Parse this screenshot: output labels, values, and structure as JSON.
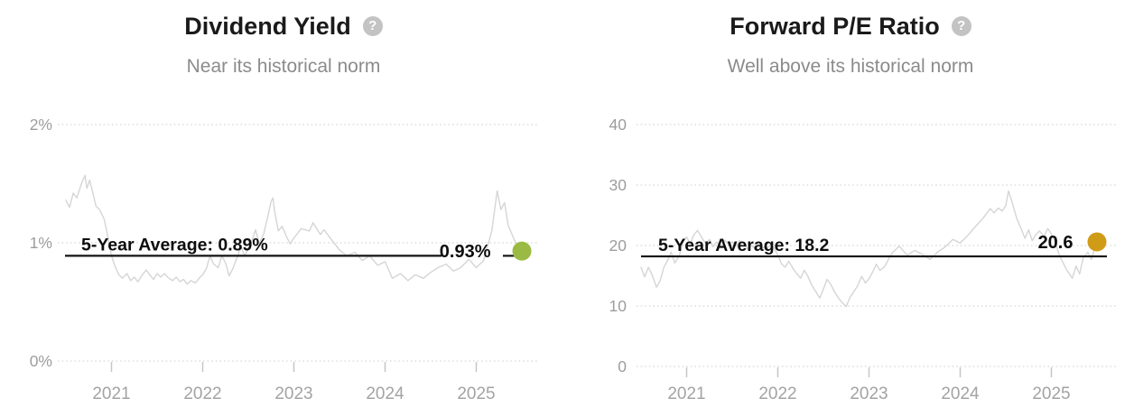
{
  "icons": {
    "help_glyph": "?"
  },
  "colors": {
    "series_line": "#d5d5d5",
    "average_line": "#141414",
    "gridline": "#d8d8d8",
    "tick": "#c6c6c6",
    "axis_label": "#9d9d9d",
    "title_text": "#1a1a1a",
    "subtitle_text": "#8b8b8b",
    "dividend_dot_green": "#9aba43",
    "pe_dot_orange": "#d09b17"
  },
  "chart_data": [
    {
      "type": "line",
      "title": "Dividend Yield",
      "subtitle": "Near its historical norm",
      "help_icon": "question-mark-icon",
      "grid": "dotted",
      "legend": "none",
      "xlim": [
        2020.5,
        2025.5
      ],
      "ylim": [
        0,
        2
      ],
      "y_ticks": [
        {
          "v": 2,
          "label": "2%"
        },
        {
          "v": 1,
          "label": "1%"
        },
        {
          "v": 0,
          "label": "0%"
        }
      ],
      "x_ticks": [
        {
          "v": 2021,
          "label": "2021"
        },
        {
          "v": 2022,
          "label": "2022"
        },
        {
          "v": 2023,
          "label": "2023"
        },
        {
          "v": 2024,
          "label": "2024"
        },
        {
          "v": 2025,
          "label": "2025"
        }
      ],
      "average": {
        "value": 0.89,
        "label": "5-Year Average: 0.89%"
      },
      "current": {
        "value": 0.93,
        "label": "0.93%",
        "dot_color": "#9aba43"
      },
      "x": [
        2020.5,
        2020.54,
        2020.58,
        2020.62,
        2020.67,
        2020.71,
        2020.73,
        2020.76,
        2020.79,
        2020.83,
        2020.87,
        2020.92,
        2020.96,
        2021.0,
        2021.04,
        2021.08,
        2021.12,
        2021.17,
        2021.21,
        2021.25,
        2021.29,
        2021.33,
        2021.38,
        2021.42,
        2021.46,
        2021.5,
        2021.54,
        2021.58,
        2021.63,
        2021.67,
        2021.71,
        2021.75,
        2021.79,
        2021.83,
        2021.87,
        2021.92,
        2021.96,
        2022.0,
        2022.04,
        2022.08,
        2022.12,
        2022.17,
        2022.21,
        2022.25,
        2022.29,
        2022.33,
        2022.37,
        2022.42,
        2022.46,
        2022.5,
        2022.54,
        2022.58,
        2022.62,
        2022.67,
        2022.71,
        2022.75,
        2022.77,
        2022.79,
        2022.83,
        2022.87,
        2022.92,
        2022.96,
        2023.0,
        2023.08,
        2023.17,
        2023.21,
        2023.29,
        2023.33,
        2023.42,
        2023.5,
        2023.58,
        2023.67,
        2023.75,
        2023.83,
        2023.92,
        2024.0,
        2024.08,
        2024.17,
        2024.25,
        2024.33,
        2024.42,
        2024.5,
        2024.58,
        2024.67,
        2024.75,
        2024.83,
        2024.92,
        2025.0,
        2025.08,
        2025.17,
        2025.23,
        2025.27,
        2025.31,
        2025.35,
        2025.42,
        2025.5
      ],
      "values": [
        1.36,
        1.3,
        1.42,
        1.38,
        1.5,
        1.57,
        1.46,
        1.53,
        1.44,
        1.31,
        1.28,
        1.2,
        1.05,
        0.89,
        0.8,
        0.73,
        0.7,
        0.74,
        0.68,
        0.71,
        0.67,
        0.72,
        0.77,
        0.73,
        0.69,
        0.74,
        0.71,
        0.74,
        0.7,
        0.68,
        0.71,
        0.67,
        0.69,
        0.65,
        0.68,
        0.66,
        0.7,
        0.73,
        0.78,
        0.89,
        0.82,
        0.79,
        0.89,
        0.83,
        0.72,
        0.78,
        0.86,
        0.97,
        0.89,
        0.95,
        1.02,
        1.11,
        0.99,
        1.08,
        1.21,
        1.35,
        1.38,
        1.26,
        1.1,
        1.14,
        1.05,
        0.99,
        1.04,
        1.12,
        1.1,
        1.17,
        1.07,
        1.11,
        1.02,
        0.94,
        0.89,
        0.92,
        0.85,
        0.89,
        0.81,
        0.84,
        0.7,
        0.74,
        0.68,
        0.73,
        0.7,
        0.75,
        0.79,
        0.82,
        0.76,
        0.79,
        0.86,
        0.79,
        0.85,
        1.1,
        1.44,
        1.28,
        1.34,
        1.15,
        1.02,
        0.93
      ]
    },
    {
      "type": "line",
      "title": "Forward P/E Ratio",
      "subtitle": "Well above its historical norm",
      "help_icon": "question-mark-icon",
      "grid": "dotted",
      "legend": "none",
      "xlim": [
        2020.5,
        2025.5
      ],
      "ylim": [
        0,
        40
      ],
      "y_ticks": [
        {
          "v": 40,
          "label": "40"
        },
        {
          "v": 30,
          "label": "30"
        },
        {
          "v": 20,
          "label": "20"
        },
        {
          "v": 10,
          "label": "10"
        },
        {
          "v": 0,
          "label": "0"
        }
      ],
      "x_ticks": [
        {
          "v": 2021,
          "label": "2021"
        },
        {
          "v": 2022,
          "label": "2022"
        },
        {
          "v": 2023,
          "label": "2023"
        },
        {
          "v": 2024,
          "label": "2024"
        },
        {
          "v": 2025,
          "label": "2025"
        }
      ],
      "average": {
        "value": 18.2,
        "label": "5-Year Average: 18.2"
      },
      "current": {
        "value": 20.6,
        "label": "20.6",
        "dot_color": "#d09b17"
      },
      "x": [
        2020.5,
        2020.54,
        2020.58,
        2020.62,
        2020.67,
        2020.71,
        2020.75,
        2020.79,
        2020.83,
        2020.87,
        2020.92,
        2020.96,
        2021.0,
        2021.04,
        2021.08,
        2021.12,
        2021.17,
        2021.21,
        2021.25,
        2021.29,
        2021.33,
        2021.38,
        2021.42,
        2021.46,
        2021.5,
        2021.54,
        2021.58,
        2021.63,
        2021.67,
        2021.71,
        2021.75,
        2021.79,
        2021.83,
        2021.88,
        2021.92,
        2021.96,
        2022.0,
        2022.04,
        2022.08,
        2022.12,
        2022.17,
        2022.21,
        2022.25,
        2022.29,
        2022.33,
        2022.37,
        2022.42,
        2022.46,
        2022.5,
        2022.54,
        2022.58,
        2022.62,
        2022.67,
        2022.71,
        2022.75,
        2022.79,
        2022.83,
        2022.87,
        2022.92,
        2022.96,
        2023.0,
        2023.04,
        2023.08,
        2023.12,
        2023.17,
        2023.21,
        2023.25,
        2023.33,
        2023.42,
        2023.5,
        2023.58,
        2023.67,
        2023.75,
        2023.83,
        2023.92,
        2024.0,
        2024.08,
        2024.17,
        2024.25,
        2024.33,
        2024.37,
        2024.42,
        2024.46,
        2024.5,
        2024.53,
        2024.56,
        2024.62,
        2024.67,
        2024.71,
        2024.75,
        2024.79,
        2024.83,
        2024.87,
        2024.92,
        2024.96,
        2025.0,
        2025.04,
        2025.08,
        2025.12,
        2025.17,
        2025.23,
        2025.27,
        2025.31,
        2025.35,
        2025.4,
        2025.44,
        2025.48,
        2025.5
      ],
      "values": [
        16.4,
        14.8,
        16.4,
        15.2,
        13.1,
        14.2,
        16.4,
        17.5,
        18.9,
        17.1,
        18.3,
        20.7,
        21.4,
        20.2,
        21.8,
        22.5,
        21.2,
        20.3,
        21.0,
        19.8,
        20.6,
        19.6,
        20.9,
        20.1,
        20.6,
        19.9,
        20.8,
        20.2,
        19.4,
        20.0,
        19.5,
        20.3,
        19.7,
        19.5,
        20.1,
        19.5,
        18.4,
        17.0,
        16.4,
        17.4,
        16.1,
        15.3,
        14.6,
        15.9,
        14.9,
        13.5,
        12.3,
        11.3,
        12.8,
        14.4,
        13.6,
        12.4,
        11.2,
        10.5,
        9.9,
        11.4,
        12.3,
        13.2,
        14.9,
        13.8,
        14.5,
        15.6,
        16.9,
        15.9,
        16.5,
        17.6,
        18.7,
        19.9,
        18.4,
        19.2,
        18.6,
        17.7,
        18.9,
        19.7,
        21.0,
        20.4,
        21.6,
        23.2,
        24.5,
        26.1,
        25.4,
        26.2,
        25.7,
        26.6,
        29.0,
        27.6,
        24.5,
        22.7,
        21.2,
        22.6,
        20.8,
        21.8,
        22.4,
        21.5,
        22.8,
        21.9,
        20.7,
        18.7,
        17.4,
        15.9,
        14.6,
        16.6,
        15.3,
        18.0,
        18.9,
        17.7,
        19.9,
        20.6
      ]
    }
  ]
}
